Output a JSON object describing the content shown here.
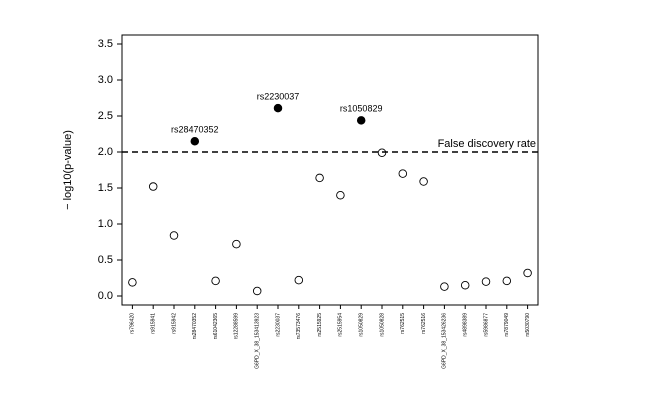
{
  "chart_data": {
    "type": "scatter",
    "y_label": "− log10(p-value)",
    "categories": [
      "rs796420",
      "rs915941",
      "rs915942",
      "rs28470352",
      "rs61042365",
      "rs12288599",
      "G6PD_X_38_153413923",
      "rs2230037",
      "rs73573476",
      "rs2515925",
      "rs2515954",
      "rs1050829",
      "rs1050828",
      "rs762515",
      "rs762516",
      "G6PD_X_38_153426236",
      "rs4898389",
      "rs5986877",
      "rs7879049",
      "rs5030790"
    ],
    "values": [
      0.19,
      1.52,
      0.84,
      2.15,
      0.21,
      0.72,
      0.07,
      2.61,
      0.22,
      1.64,
      1.4,
      2.44,
      1.99,
      1.7,
      1.59,
      0.13,
      0.15,
      0.2,
      0.21,
      0.32
    ],
    "marker_fill": [
      "none",
      "none",
      "none",
      "#000000",
      "none",
      "none",
      "none",
      "#000000",
      "none",
      "none",
      "none",
      "#000000",
      "none",
      "none",
      "none",
      "none",
      "none",
      "none",
      "none",
      "none"
    ],
    "color": "#000000",
    "ylim": [
      -0.125,
      3.625
    ],
    "yticks": [
      {
        "value": 0,
        "label": "0.0"
      },
      {
        "value": 0.5,
        "label": "0.5"
      },
      {
        "value": 1,
        "label": "1.0"
      },
      {
        "value": 1.5,
        "label": "1.5"
      },
      {
        "value": 2,
        "label": "2.0"
      },
      {
        "value": 2.5,
        "label": "2.5"
      },
      {
        "value": 3,
        "label": "3.0"
      },
      {
        "value": 3.5,
        "label": "3.5"
      }
    ],
    "threshold": {
      "value": 2,
      "label": "False discovery rate"
    },
    "annotations": [
      "rs28470352",
      "rs2230037",
      "rs1050829"
    ]
  }
}
